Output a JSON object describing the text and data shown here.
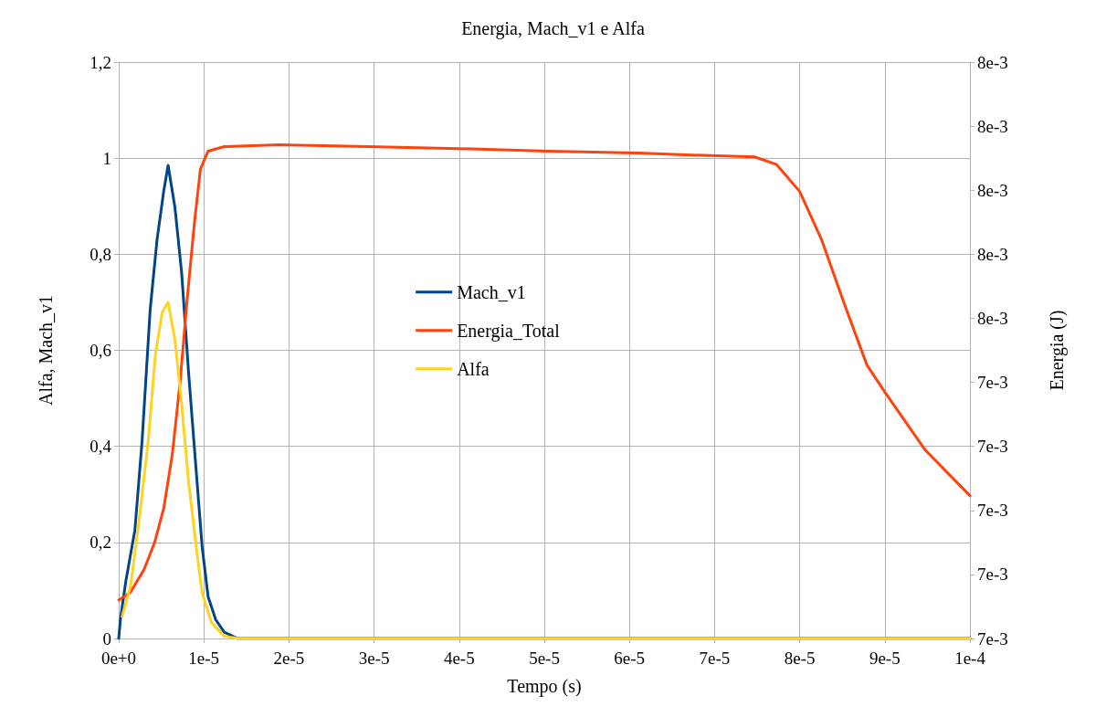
{
  "chart_data": {
    "type": "line",
    "title": "Energia, Mach_v1 e Alfa",
    "xlabel": "Tempo (s)",
    "ylabel": "Alfa, Mach_v1",
    "y2label": "Energia (J)",
    "xlim": [
      0,
      0.0001
    ],
    "xticks": [
      {
        "value": 0,
        "label": "0e+0"
      },
      {
        "value": 1e-05,
        "label": "1e-5"
      },
      {
        "value": 2e-05,
        "label": "2e-5"
      },
      {
        "value": 3e-05,
        "label": "3e-5"
      },
      {
        "value": 4e-05,
        "label": "4e-5"
      },
      {
        "value": 5e-05,
        "label": "5e-5"
      },
      {
        "value": 6e-05,
        "label": "6e-5"
      },
      {
        "value": 7e-05,
        "label": "7e-5"
      },
      {
        "value": 8e-05,
        "label": "8e-5"
      },
      {
        "value": 9e-05,
        "label": "9e-5"
      },
      {
        "value": 0.0001,
        "label": "1e-4"
      }
    ],
    "ylim": [
      0,
      1.2
    ],
    "yticks": [
      0,
      {
        "value": 0.2,
        "label": "0,2"
      },
      {
        "value": 0.4,
        "label": "0,4"
      },
      {
        "value": 0.6,
        "label": "0,6"
      },
      {
        "value": 0.8,
        "label": "0,8"
      },
      1,
      {
        "value": 1.2,
        "label": "1,2"
      }
    ],
    "y2lim": [
      0.007,
      0.0079
    ],
    "y2ticks": [
      {
        "value": 0.007,
        "label": "7e-3"
      },
      {
        "value": 0.0071,
        "label": "7e-3"
      },
      {
        "value": 0.0072,
        "label": "7e-3"
      },
      {
        "value": 0.0073,
        "label": "7e-3"
      },
      {
        "value": 0.0074,
        "label": "7e-3"
      },
      {
        "value": 0.0075,
        "label": "8e-3"
      },
      {
        "value": 0.0076,
        "label": "8e-3"
      },
      {
        "value": 0.0077,
        "label": "8e-3"
      },
      {
        "value": 0.0078,
        "label": "8e-3"
      },
      {
        "value": 0.0079,
        "label": "8e-3"
      }
    ],
    "grid": true,
    "legend": "center",
    "marker": "none",
    "line_style": "solid",
    "series": [
      {
        "name": "Mach_v1",
        "color": "#004586",
        "x": [
          0,
          2e-07,
          8.4e-07,
          1.9e-06,
          2.74e-06,
          3.7e-06,
          4.5e-06,
          5.3e-06,
          5.8e-06,
          6.6e-06,
          7.4e-06,
          8.2e-06,
          9.1e-06,
          9.8e-06,
          1.05e-05,
          1.14e-05,
          1.24e-05,
          1.4e-05,
          0.0001
        ],
        "values": [
          0,
          0.04,
          0.12,
          0.226,
          0.41,
          0.686,
          0.83,
          0.933,
          0.985,
          0.898,
          0.76,
          0.555,
          0.349,
          0.191,
          0.087,
          0.039,
          0.013,
          0,
          0
        ]
      },
      {
        "name": "Energia_Total",
        "color": "#ff420e",
        "axis": "y2",
        "x": [
          0,
          1.37e-06,
          2.95e-06,
          4.2e-06,
          5.3e-06,
          6.3e-06,
          7.2e-06,
          8e-06,
          8.9e-06,
          9.6e-06,
          1.05e-05,
          1.24e-05,
          1.88e-05,
          2.93e-05,
          3.99e-05,
          5.04e-05,
          6.1e-05,
          6.94e-05,
          7.47e-05,
          7.73e-05,
          8e-05,
          8.26e-05,
          8.52e-05,
          8.79e-05,
          9e-05,
          9.47e-05,
          0.0001
        ],
        "values": [
          0.00706,
          0.007072,
          0.007107,
          0.007149,
          0.007204,
          0.007288,
          0.007399,
          0.007524,
          0.00765,
          0.007733,
          0.007761,
          0.007768,
          0.007771,
          0.007768,
          0.007765,
          0.007761,
          0.007758,
          0.007754,
          0.007752,
          0.00774,
          0.007698,
          0.007622,
          0.007524,
          0.007427,
          0.007385,
          0.007295,
          0.007223
        ]
      },
      {
        "name": "Alfa",
        "color": "#ffd320",
        "x": [
          4e-07,
          1.4e-06,
          2.4e-06,
          3.5e-06,
          4.3e-06,
          5.1e-06,
          5.8e-06,
          6.6e-06,
          7.4e-06,
          8.2e-06,
          9.1e-06,
          9.8e-06,
          1.09e-05,
          1.24e-05,
          1.4e-05,
          0.0001
        ],
        "values": [
          0.046,
          0.11,
          0.247,
          0.417,
          0.59,
          0.679,
          0.7,
          0.623,
          0.486,
          0.328,
          0.191,
          0.095,
          0.033,
          0.005,
          0,
          0
        ]
      }
    ]
  }
}
